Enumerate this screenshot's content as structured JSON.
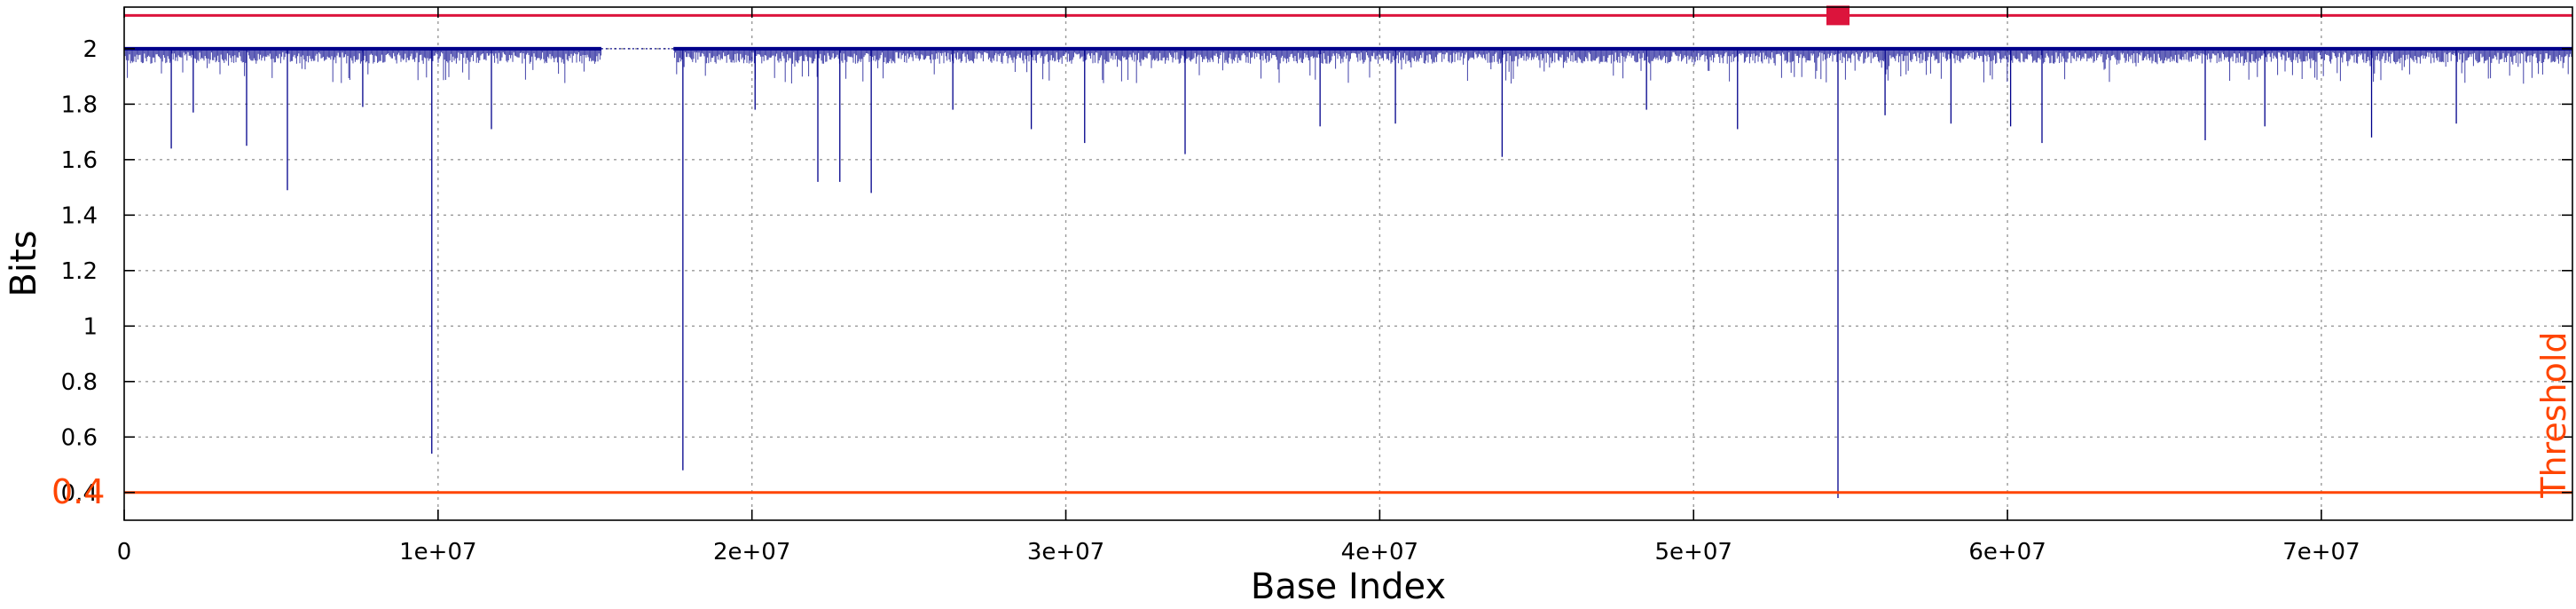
{
  "chart_data": {
    "type": "line",
    "title": "",
    "xlabel": "Base Index",
    "ylabel": "Bits",
    "xlim": [
      0,
      78000000
    ],
    "ylim": [
      0.3,
      2.15
    ],
    "grid": true,
    "x_ticks": [
      0,
      10000000,
      20000000,
      30000000,
      40000000,
      50000000,
      60000000,
      70000000
    ],
    "x_tick_labels": [
      "0",
      "1e+07",
      "2e+07",
      "3e+07",
      "4e+07",
      "5e+07",
      "6e+07",
      "7e+07"
    ],
    "y_ticks": [
      0.4,
      0.6,
      0.8,
      1.0,
      1.2,
      1.4,
      1.6,
      1.8,
      2.0
    ],
    "y_tick_labels": [
      "0.4",
      "0.6",
      "0.8",
      "1",
      "1.2",
      "1.4",
      "1.6",
      "1.8",
      "2"
    ],
    "colors": {
      "series": "#00008b",
      "upper_line": "#dc143c",
      "threshold": "#ff4500"
    },
    "series": [
      {
        "baseline": 2.0,
        "gap": [
          15200000,
          17500000
        ],
        "spikes": [
          [
            1500000,
            1.64
          ],
          [
            2200000,
            1.77
          ],
          [
            3900000,
            1.65
          ],
          [
            5200000,
            1.49
          ],
          [
            7600000,
            1.79
          ],
          [
            9800000,
            0.54
          ],
          [
            11700000,
            1.71
          ],
          [
            17800000,
            0.48
          ],
          [
            20100000,
            1.78
          ],
          [
            22100000,
            1.52
          ],
          [
            22800000,
            1.52
          ],
          [
            23800000,
            1.48
          ],
          [
            26400000,
            1.78
          ],
          [
            28900000,
            1.71
          ],
          [
            30600000,
            1.66
          ],
          [
            33800000,
            1.62
          ],
          [
            38100000,
            1.72
          ],
          [
            40500000,
            1.73
          ],
          [
            43900000,
            1.61
          ],
          [
            48500000,
            1.78
          ],
          [
            51400000,
            1.71
          ],
          [
            54600000,
            0.38
          ],
          [
            56100000,
            1.76
          ],
          [
            58200000,
            1.73
          ],
          [
            60100000,
            1.72
          ],
          [
            61100000,
            1.66
          ],
          [
            66300000,
            1.67
          ],
          [
            68200000,
            1.72
          ],
          [
            71600000,
            1.68
          ],
          [
            74300000,
            1.73
          ]
        ]
      }
    ],
    "upper_line": {
      "y": 2.12,
      "marker_x": 54600000
    },
    "threshold": {
      "y": 0.4,
      "value_label": "0.4",
      "name_label": "Threshold"
    }
  }
}
